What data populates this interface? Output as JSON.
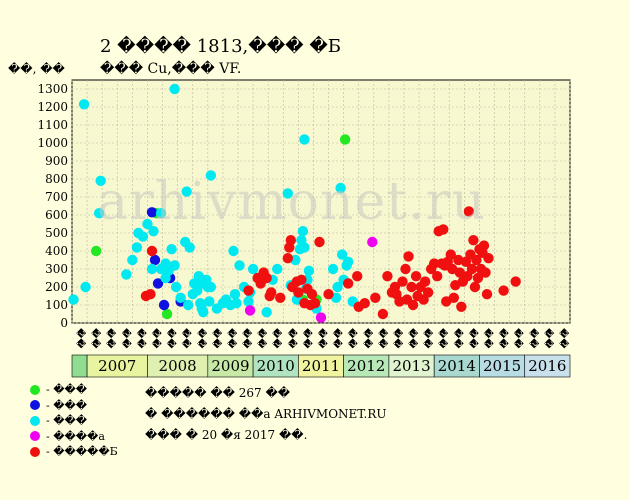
{
  "chart_data": {
    "type": "scatter",
    "title": "2 ���� 1813,��� �Б",
    "subtitle": "��� Cu,��� VF.",
    "ylabel": "��, ��",
    "ylim": [
      0,
      1350
    ],
    "yticks": [
      0,
      100,
      200,
      300,
      400,
      500,
      600,
      700,
      800,
      900,
      1000,
      1100,
      1200,
      1300
    ],
    "grid": true,
    "x_range": [
      0,
      33
    ],
    "x_ticks": [
      "��",
      "��",
      "��",
      "��",
      "��",
      "��",
      "��",
      "��",
      "��",
      "��",
      "��",
      "��",
      "��",
      "��",
      "��",
      "��",
      "��",
      "��",
      "��",
      "��",
      "��",
      "��",
      "��",
      "��",
      "��",
      "��",
      "��",
      "��",
      "��",
      "��",
      "��",
      "��",
      "��"
    ],
    "years": [
      {
        "label": "2007",
        "start": 1,
        "end": 5,
        "color": "#e8f4a0"
      },
      {
        "label": "2008",
        "start": 5,
        "end": 9,
        "color": "#e0f0b0"
      },
      {
        "label": "2009",
        "start": 9,
        "end": 12,
        "color": "#c8e8a8"
      },
      {
        "label": "2010",
        "start": 12,
        "end": 15,
        "color": "#b0e4c0"
      },
      {
        "label": "2011",
        "start": 15,
        "end": 18,
        "color": "#f0f4a0"
      },
      {
        "label": "2012",
        "start": 18,
        "end": 21,
        "color": "#b8e8b8"
      },
      {
        "label": "2013",
        "start": 21,
        "end": 24,
        "color": "#e0f4d0"
      },
      {
        "label": "2014",
        "start": 24,
        "end": 27,
        "color": "#a8d8d0"
      },
      {
        "label": "2015",
        "start": 27,
        "end": 30,
        "color": "#b8dce4"
      },
      {
        "label": "2016",
        "start": 30,
        "end": 33,
        "color": "#c8e0ec"
      }
    ],
    "first_band_color": "#90dc90",
    "series": [
      {
        "name": "- ���",
        "color": "#22e822",
        "points": [
          [
            1.6,
            400
          ],
          [
            5.6,
            610
          ],
          [
            6.3,
            50
          ],
          [
            15.3,
            130
          ],
          [
            16.2,
            130
          ],
          [
            18.1,
            1020
          ]
        ]
      },
      {
        "name": "- ���",
        "color": "#1010e0",
        "points": [
          [
            5.3,
            615
          ],
          [
            5.5,
            350
          ],
          [
            5.7,
            220
          ],
          [
            6.1,
            100
          ],
          [
            6.5,
            250
          ],
          [
            7.2,
            120
          ]
        ]
      },
      {
        "name": "- ���",
        "color": "#00e8f0",
        "points": [
          [
            0.1,
            130
          ],
          [
            0.8,
            1215
          ],
          [
            0.9,
            200
          ],
          [
            1.8,
            610
          ],
          [
            1.9,
            790
          ],
          [
            3.6,
            270
          ],
          [
            4.0,
            350
          ],
          [
            4.3,
            420
          ],
          [
            4.4,
            500
          ],
          [
            4.7,
            480
          ],
          [
            5.0,
            550
          ],
          [
            5.3,
            300
          ],
          [
            5.4,
            510
          ],
          [
            5.9,
            610
          ],
          [
            5.9,
            300
          ],
          [
            6.2,
            250
          ],
          [
            6.2,
            330
          ],
          [
            6.4,
            290
          ],
          [
            6.6,
            410
          ],
          [
            6.8,
            320
          ],
          [
            6.8,
            1300
          ],
          [
            6.9,
            200
          ],
          [
            7.2,
            140
          ],
          [
            7.5,
            450
          ],
          [
            7.6,
            730
          ],
          [
            7.7,
            100
          ],
          [
            7.8,
            420
          ],
          [
            8.0,
            160
          ],
          [
            8.1,
            220
          ],
          [
            8.3,
            180
          ],
          [
            8.4,
            260
          ],
          [
            8.5,
            110
          ],
          [
            8.6,
            80
          ],
          [
            8.7,
            60
          ],
          [
            8.7,
            220
          ],
          [
            8.9,
            240
          ],
          [
            9.0,
            200
          ],
          [
            9.1,
            120
          ],
          [
            9.2,
            200
          ],
          [
            9.2,
            820
          ],
          [
            9.6,
            80
          ],
          [
            10.0,
            110
          ],
          [
            10.2,
            130
          ],
          [
            10.5,
            100
          ],
          [
            10.7,
            400
          ],
          [
            10.8,
            160
          ],
          [
            10.9,
            110
          ],
          [
            11.1,
            320
          ],
          [
            11.4,
            200
          ],
          [
            11.7,
            120
          ],
          [
            11.8,
            170
          ],
          [
            12.0,
            300
          ],
          [
            12.9,
            60
          ],
          [
            13.3,
            240
          ],
          [
            13.6,
            300
          ],
          [
            14.3,
            720
          ],
          [
            14.5,
            210
          ],
          [
            14.8,
            350
          ],
          [
            14.9,
            130
          ],
          [
            15.1,
            410
          ],
          [
            15.2,
            460
          ],
          [
            15.3,
            510
          ],
          [
            15.4,
            1020
          ],
          [
            15.4,
            420
          ],
          [
            15.5,
            190
          ],
          [
            15.6,
            240
          ],
          [
            15.7,
            290
          ],
          [
            15.9,
            160
          ],
          [
            16.2,
            80
          ],
          [
            17.3,
            300
          ],
          [
            17.5,
            140
          ],
          [
            17.6,
            200
          ],
          [
            17.8,
            750
          ],
          [
            17.9,
            380
          ],
          [
            18.0,
            240
          ],
          [
            18.2,
            320
          ],
          [
            18.3,
            340
          ],
          [
            18.6,
            120
          ]
        ]
      },
      {
        "name": "- ����а",
        "color": "#f000f0",
        "points": [
          [
            11.8,
            70
          ],
          [
            16.5,
            30
          ],
          [
            19.9,
            450
          ]
        ]
      },
      {
        "name": "- �����Б",
        "color": "#f01010",
        "points": [
          [
            4.9,
            150
          ],
          [
            5.2,
            160
          ],
          [
            5.3,
            400
          ],
          [
            11.7,
            180
          ],
          [
            12.3,
            250
          ],
          [
            12.5,
            220
          ],
          [
            12.7,
            280
          ],
          [
            12.9,
            250
          ],
          [
            13.1,
            150
          ],
          [
            13.2,
            170
          ],
          [
            13.8,
            140
          ],
          [
            14.3,
            360
          ],
          [
            14.4,
            420
          ],
          [
            14.5,
            460
          ],
          [
            14.6,
            200
          ],
          [
            14.9,
            230
          ],
          [
            15.0,
            170
          ],
          [
            15.2,
            240
          ],
          [
            15.4,
            110
          ],
          [
            15.6,
            190
          ],
          [
            15.8,
            100
          ],
          [
            15.9,
            160
          ],
          [
            16.1,
            110
          ],
          [
            16.4,
            450
          ],
          [
            17.0,
            160
          ],
          [
            18.3,
            220
          ],
          [
            18.9,
            260
          ],
          [
            19.0,
            90
          ],
          [
            19.4,
            110
          ],
          [
            20.1,
            140
          ],
          [
            20.6,
            50
          ],
          [
            20.9,
            260
          ],
          [
            21.2,
            170
          ],
          [
            21.4,
            200
          ],
          [
            21.5,
            160
          ],
          [
            21.7,
            120
          ],
          [
            21.9,
            230
          ],
          [
            22.1,
            300
          ],
          [
            22.2,
            130
          ],
          [
            22.3,
            370
          ],
          [
            22.5,
            200
          ],
          [
            22.6,
            100
          ],
          [
            22.8,
            260
          ],
          [
            22.9,
            150
          ],
          [
            23.1,
            200
          ],
          [
            23.3,
            130
          ],
          [
            23.4,
            230
          ],
          [
            23.6,
            170
          ],
          [
            23.8,
            300
          ],
          [
            24.0,
            330
          ],
          [
            24.2,
            260
          ],
          [
            24.3,
            510
          ],
          [
            24.5,
            330
          ],
          [
            24.6,
            520
          ],
          [
            24.7,
            320
          ],
          [
            24.8,
            120
          ],
          [
            24.9,
            340
          ],
          [
            25.1,
            380
          ],
          [
            25.2,
            300
          ],
          [
            25.3,
            140
          ],
          [
            25.4,
            210
          ],
          [
            25.6,
            350
          ],
          [
            25.7,
            280
          ],
          [
            25.8,
            90
          ],
          [
            25.9,
            230
          ],
          [
            26.1,
            340
          ],
          [
            26.2,
            260
          ],
          [
            26.3,
            620
          ],
          [
            26.4,
            380
          ],
          [
            26.5,
            300
          ],
          [
            26.6,
            460
          ],
          [
            26.7,
            200
          ],
          [
            26.8,
            350
          ],
          [
            26.9,
            250
          ],
          [
            27.0,
            410
          ],
          [
            27.1,
            300
          ],
          [
            27.2,
            390
          ],
          [
            27.3,
            430
          ],
          [
            27.4,
            280
          ],
          [
            27.5,
            160
          ],
          [
            27.6,
            360
          ],
          [
            28.6,
            180
          ],
          [
            29.4,
            230
          ]
        ]
      }
    ],
    "legend_position": "bottom-left"
  },
  "notes": {
    "line1": "�����  �� 267 ��",
    "line2": "� ������ ��а ARHIVMONET.RU",
    "line3": "��� � 20 �я 2017 ��."
  },
  "watermark": "arhivmonet.ru"
}
